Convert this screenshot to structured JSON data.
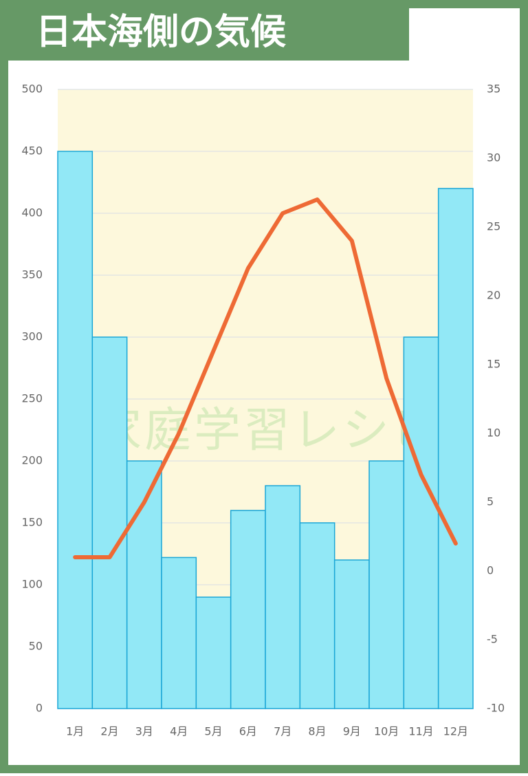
{
  "chart_data": {
    "type": "bar-line",
    "title": "日本海側の気候",
    "watermark": "家庭学習レシピ",
    "categories": [
      "1月",
      "2月",
      "3月",
      "4月",
      "5月",
      "6月",
      "7月",
      "8月",
      "9月",
      "10月",
      "11月",
      "12月"
    ],
    "series": [
      {
        "type": "bar",
        "color": "#92e8f6",
        "edge_color": "#1aa6d6",
        "values": [
          450,
          300,
          200,
          122,
          90,
          160,
          180,
          150,
          120,
          200,
          300,
          420
        ]
      },
      {
        "type": "line",
        "axis": "y2",
        "color": "#ee6a35",
        "values": [
          1,
          1,
          5,
          10,
          16,
          22,
          26,
          27,
          24,
          14,
          7,
          2
        ]
      }
    ],
    "ylim": [
      0,
      500
    ],
    "yticks": [
      0,
      50,
      100,
      150,
      200,
      250,
      300,
      350,
      400,
      450,
      500
    ],
    "y2lim": [
      -10,
      35
    ],
    "y2ticks": [
      -10,
      -5,
      0,
      5,
      10,
      15,
      20,
      25,
      30,
      35
    ],
    "grid": true,
    "plot_background": "#fdf8dc"
  }
}
